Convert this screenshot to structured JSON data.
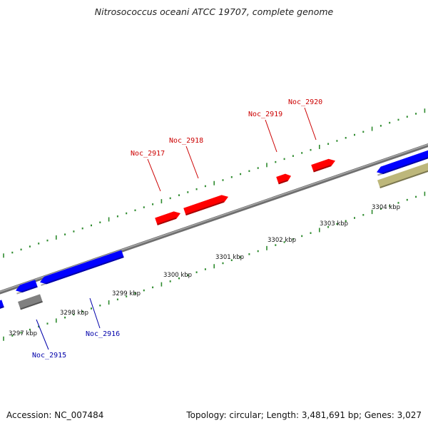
{
  "title_species": "Nitrosococcus oceani ATCC 19707",
  "title_suffix": ", complete genome",
  "footer": {
    "accession": "Accession: NC_007484",
    "summary": "Topology: circular; Length: 3,481,691 bp; Genes: 3,027"
  },
  "colors": {
    "backbone": "#8a8a8a",
    "tick": "#2e8b2e",
    "forward_gene": "#ff0000",
    "reverse_gene": "#0000ff",
    "other_gene": "#808080",
    "rna_gene": "#bdb77b",
    "forward_label": "#cc0000",
    "reverse_label": "#0000aa"
  },
  "kbp_ticks": [
    "3297 kbp",
    "3298 kbp",
    "3299 kbp",
    "3300 kbp",
    "3301 kbp",
    "3302 kbp",
    "3303 kbp",
    "3304 kbp"
  ],
  "gene_labels": [
    "Noc_2915",
    "Noc_2916",
    "Noc_2917",
    "Noc_2918",
    "Noc_2919",
    "Noc_2920"
  ]
}
